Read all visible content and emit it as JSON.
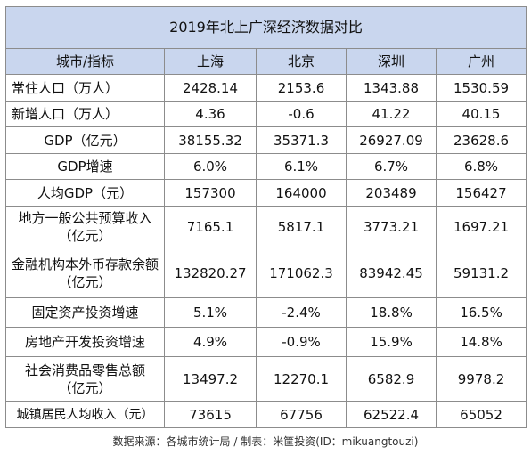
{
  "table": {
    "title": "2019年北上广深经济数据对比",
    "headers": [
      "城市/指标",
      "上海",
      "北京",
      "深圳",
      "广州"
    ],
    "rows": [
      {
        "label": "常住人口（万人）",
        "values": [
          "2428.14",
          "2153.6",
          "1343.88",
          "1530.59"
        ]
      },
      {
        "label": "新增人口（万人）",
        "values": [
          "4.36",
          "-0.6",
          "41.22",
          "40.15"
        ]
      },
      {
        "label": "GDP（亿元）",
        "values": [
          "38155.32",
          "35371.3",
          "26927.09",
          "23628.6"
        ]
      },
      {
        "label": "GDP增速",
        "values": [
          "6.0%",
          "6.1%",
          "6.7%",
          "6.8%"
        ]
      },
      {
        "label": "人均GDP（元）",
        "values": [
          "157300",
          "164000",
          "203489",
          "156427"
        ]
      },
      {
        "label_line1": "地方一般公共预算收入",
        "label_line2": "（亿元）",
        "values": [
          "7165.1",
          "5817.1",
          "3773.21",
          "1697.21"
        ]
      },
      {
        "label_line1": "金融机构本外币存款余额",
        "label_line2": "（亿元）",
        "values": [
          "132820.27",
          "171062.3",
          "83942.45",
          "59131.2"
        ]
      },
      {
        "label": "固定资产投资增速",
        "values": [
          "5.1%",
          "-2.4%",
          "18.8%",
          "16.5%"
        ]
      },
      {
        "label": "房地产开发投资增速",
        "values": [
          "4.9%",
          "-0.9%",
          "15.9%",
          "14.8%"
        ]
      },
      {
        "label_line1": "社会消费品零售总额",
        "label_line2": "（亿元）",
        "values": [
          "13497.2",
          "12270.1",
          "6582.9",
          "9978.2"
        ]
      },
      {
        "label": "城镇居民人均收入（元）",
        "values": [
          "73615",
          "67756",
          "62522.4",
          "65052"
        ]
      }
    ]
  },
  "footer": "数据来源：各城市统计局 / 制表：米筐投资(ID：mikuangtouzi)"
}
